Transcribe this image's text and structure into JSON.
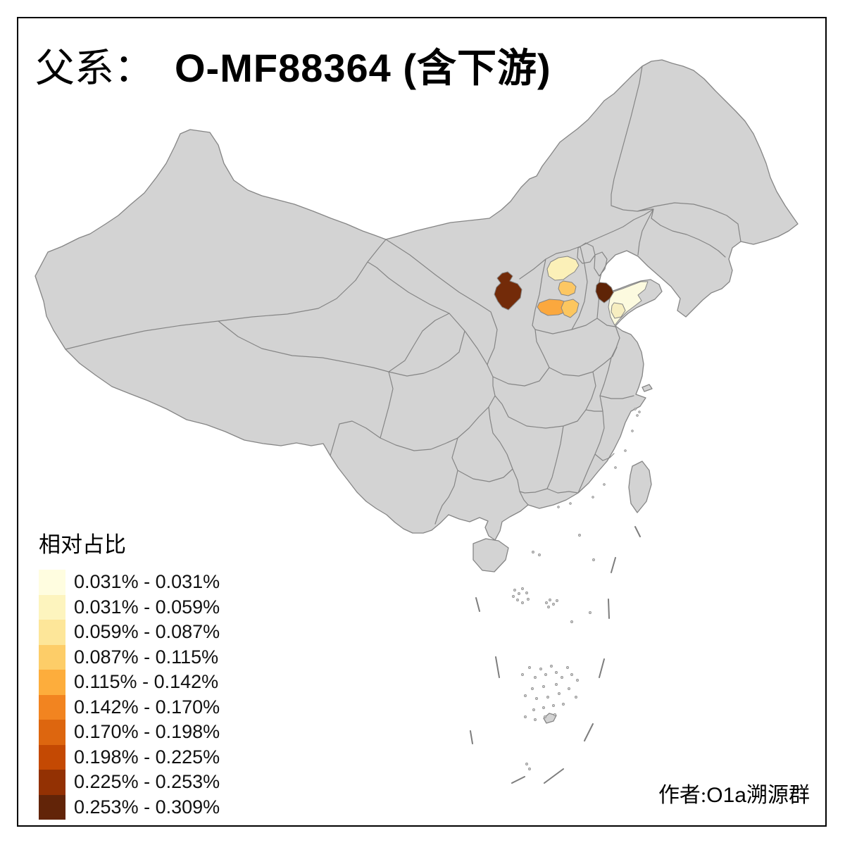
{
  "title": {
    "prefix": "父系：",
    "main": "O-MF88364 (含下游)"
  },
  "legend": {
    "title": "相对占比",
    "bins": [
      {
        "label": "0.031% - 0.031%",
        "color": "#FFFDE0"
      },
      {
        "label": "0.031% - 0.059%",
        "color": "#FDF4BE"
      },
      {
        "label": "0.059% - 0.087%",
        "color": "#FDE699"
      },
      {
        "label": "0.087% - 0.115%",
        "color": "#FDCD68"
      },
      {
        "label": "0.115% - 0.142%",
        "color": "#FDAD3C"
      },
      {
        "label": "0.142% - 0.170%",
        "color": "#F28420"
      },
      {
        "label": "0.170% - 0.198%",
        "color": "#DD660F"
      },
      {
        "label": "0.198% - 0.225%",
        "color": "#C44903"
      },
      {
        "label": "0.225% - 0.253%",
        "color": "#933103"
      },
      {
        "label": "0.253% - 0.309%",
        "color": "#622408"
      }
    ]
  },
  "credit": {
    "prefix": "作者:",
    "group_latin": "O1a",
    "group_suffix": "溯源群"
  },
  "map": {
    "land_color": "#d3d3d3",
    "border_color": "#858585",
    "sea_color": "#ffffff",
    "highlighted_regions": [
      {
        "id": "region-1",
        "color": "#FBF0B8",
        "bin": "0.031% - 0.059%"
      },
      {
        "id": "region-2",
        "color": "#FCC763",
        "bin": "0.087% - 0.115%"
      },
      {
        "id": "region-3",
        "color": "#FBA83E",
        "bin": "0.115% - 0.142%"
      },
      {
        "id": "region-4",
        "color": "#FCC65F",
        "bin": "0.087% - 0.115%"
      },
      {
        "id": "region-5",
        "color": "#732B09",
        "bin": "0.225% - 0.253%"
      },
      {
        "id": "region-6",
        "color": "#5F2407",
        "bin": "0.253% - 0.309%"
      },
      {
        "id": "region-7",
        "color": "#FCFADF",
        "bin": "0.031% - 0.031%"
      },
      {
        "id": "region-8",
        "color": "#F7EEC0",
        "bin": "0.031% - 0.059%"
      }
    ]
  },
  "chart_data": {
    "type": "choropleth-map",
    "title": "父系： O-MF88364 (含下游)",
    "legend_title": "相对占比",
    "classes": [
      "0.031% - 0.031%",
      "0.031% - 0.059%",
      "0.059% - 0.087%",
      "0.087% - 0.115%",
      "0.115% - 0.142%",
      "0.142% - 0.170%",
      "0.170% - 0.198%",
      "0.198% - 0.225%",
      "0.225% - 0.253%",
      "0.253% - 0.309%"
    ],
    "value_range": [
      "0.031%",
      "0.309%"
    ],
    "highlighted_region_bins": [
      "0.031% - 0.059%",
      "0.087% - 0.115%",
      "0.115% - 0.142%",
      "0.087% - 0.115%",
      "0.225% - 0.253%",
      "0.253% - 0.309%",
      "0.031% - 0.031%",
      "0.031% - 0.059%"
    ]
  }
}
